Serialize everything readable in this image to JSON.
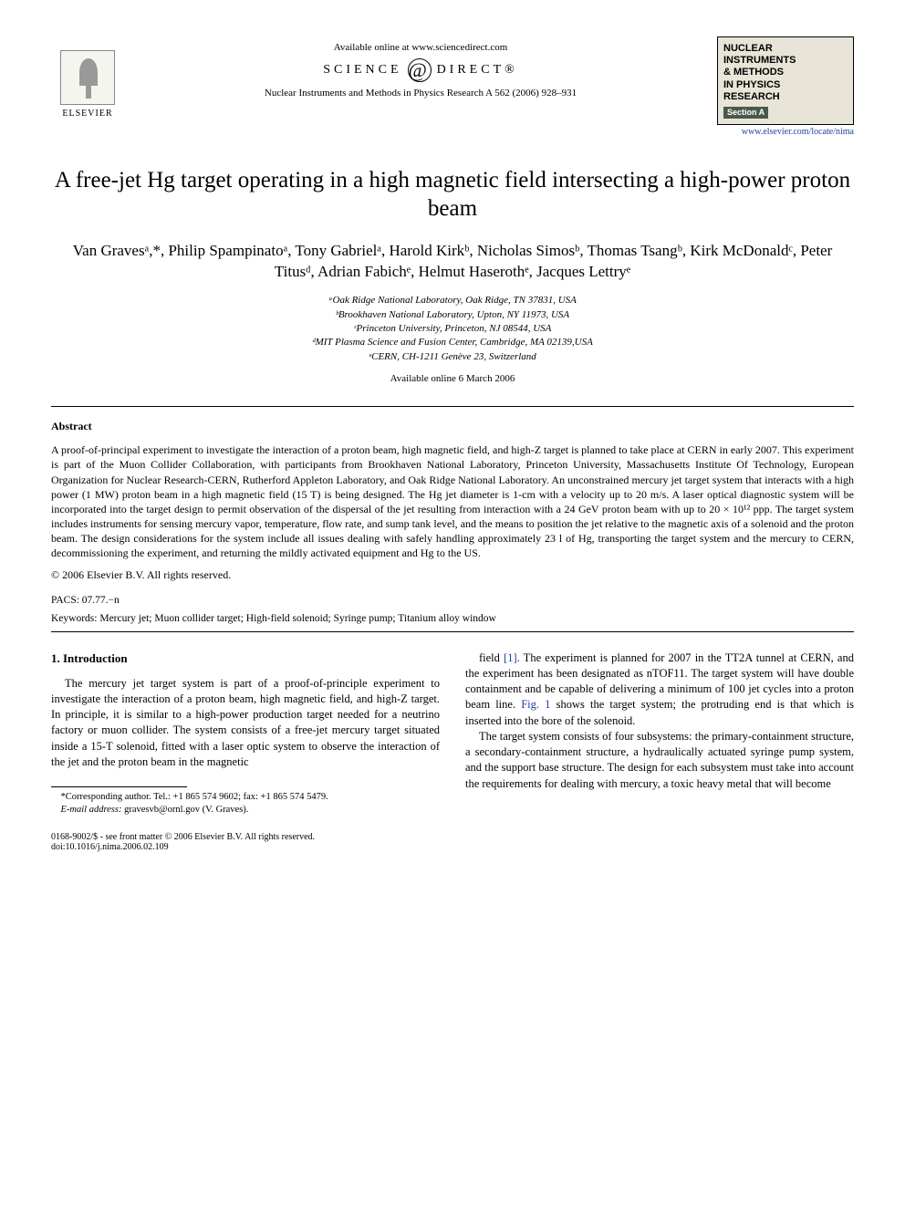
{
  "header": {
    "elsevier_label": "ELSEVIER",
    "available_online": "Available online at www.sciencedirect.com",
    "science_direct_left": "SCIENCE",
    "science_direct_right": "DIRECT®",
    "journal_ref": "Nuclear Instruments and Methods in Physics Research A 562 (2006) 928–931",
    "journal_box_line1": "NUCLEAR",
    "journal_box_line2": "INSTRUMENTS",
    "journal_box_line3": "& METHODS",
    "journal_box_line4": "IN PHYSICS",
    "journal_box_line5": "RESEARCH",
    "journal_box_section": "Section A",
    "journal_link": "www.elsevier.com/locate/nima"
  },
  "title": "A free-jet Hg target operating in a high magnetic field intersecting a high-power proton beam",
  "authors_html": "Van Gravesᵃ,*, Philip Spampinatoᵃ, Tony Gabrielᵃ, Harold Kirkᵇ, Nicholas Simosᵇ, Thomas Tsangᵇ, Kirk McDonaldᶜ, Peter Titusᵈ, Adrian Fabichᵉ, Helmut Haserothᵉ, Jacques Lettryᵉ",
  "affiliations": {
    "a": "ᵃOak Ridge National Laboratory, Oak Ridge, TN 37831, USA",
    "b": "ᵇBrookhaven National Laboratory, Upton, NY 11973, USA",
    "c": "ᶜPrinceton University, Princeton, NJ 08544, USA",
    "d": "ᵈMIT Plasma Science and Fusion Center, Cambridge, MA 02139,USA",
    "e": "ᵉCERN, CH-1211 Genève 23, Switzerland"
  },
  "available_date": "Available online 6 March 2006",
  "abstract_label": "Abstract",
  "abstract_text": "A proof-of-principal experiment to investigate the interaction of a proton beam, high magnetic field, and high-Z target is planned to take place at CERN in early 2007. This experiment is part of the Muon Collider Collaboration, with participants from Brookhaven National Laboratory, Princeton University, Massachusetts Institute Of Technology, European Organization for Nuclear Research-CERN, Rutherford Appleton Laboratory, and Oak Ridge National Laboratory. An unconstrained mercury jet target system that interacts with a high power (1 MW) proton beam in a high magnetic field (15 T) is being designed. The Hg jet diameter is 1-cm with a velocity up to 20 m/s. A laser optical diagnostic system will be incorporated into the target design to permit observation of the dispersal of the jet resulting from interaction with a 24 GeV proton beam with up to 20 × 10¹² ppp. The target system includes instruments for sensing mercury vapor, temperature, flow rate, and sump tank level, and the means to position the jet relative to the magnetic axis of a solenoid and the proton beam. The design considerations for the system include all issues dealing with safely handling approximately 23 l of Hg, transporting the target system and the mercury to CERN, decommissioning the experiment, and returning the mildly activated equipment and Hg to the US.",
  "copyright": "© 2006 Elsevier B.V. All rights reserved.",
  "pacs_label": "PACS:",
  "pacs_value": "07.77.−n",
  "keywords_label": "Keywords:",
  "keywords_value": "Mercury jet; Muon collider target; High-field solenoid; Syringe pump; Titanium alloy window",
  "section1_heading": "1. Introduction",
  "col1_p1": "The mercury jet target system is part of a proof-of-principle experiment to investigate the interaction of a proton beam, high magnetic field, and high-Z target. In principle, it is similar to a high-power production target needed for a neutrino factory or muon collider. The system consists of a free-jet mercury target situated inside a 15-T solenoid, fitted with a laser optic system to observe the interaction of the jet and the proton beam in the magnetic",
  "col2_p1a": "field ",
  "col2_ref1": "[1]",
  "col2_p1b": ". The experiment is planned for 2007 in the TT2A tunnel at CERN, and the experiment has been designated as nTOF11. The target system will have double containment and be capable of delivering a minimum of 100 jet cycles into a proton beam line. ",
  "col2_fig1": "Fig. 1",
  "col2_p1c": " shows the target system; the protruding end is that which is inserted into the bore of the solenoid.",
  "col2_p2": "The target system consists of four subsystems: the primary-containment structure, a secondary-containment structure, a hydraulically actuated syringe pump system, and the support base structure. The design for each subsystem must take into account the requirements for dealing with mercury, a toxic heavy metal that will become",
  "footnote": {
    "corr": "*Corresponding author. Tel.: +1 865 574 9602; fax: +1 865 574 5479.",
    "email_label": "E-mail address:",
    "email": "gravesvb@ornl.gov (V. Graves)."
  },
  "footer": {
    "left1": "0168-9002/$ - see front matter © 2006 Elsevier B.V. All rights reserved.",
    "left2": "doi:10.1016/j.nima.2006.02.109"
  },
  "colors": {
    "link": "#1a3f9c",
    "journal_box_bg": "#e8e4d8",
    "section_a_bg": "#4a5a4a"
  }
}
